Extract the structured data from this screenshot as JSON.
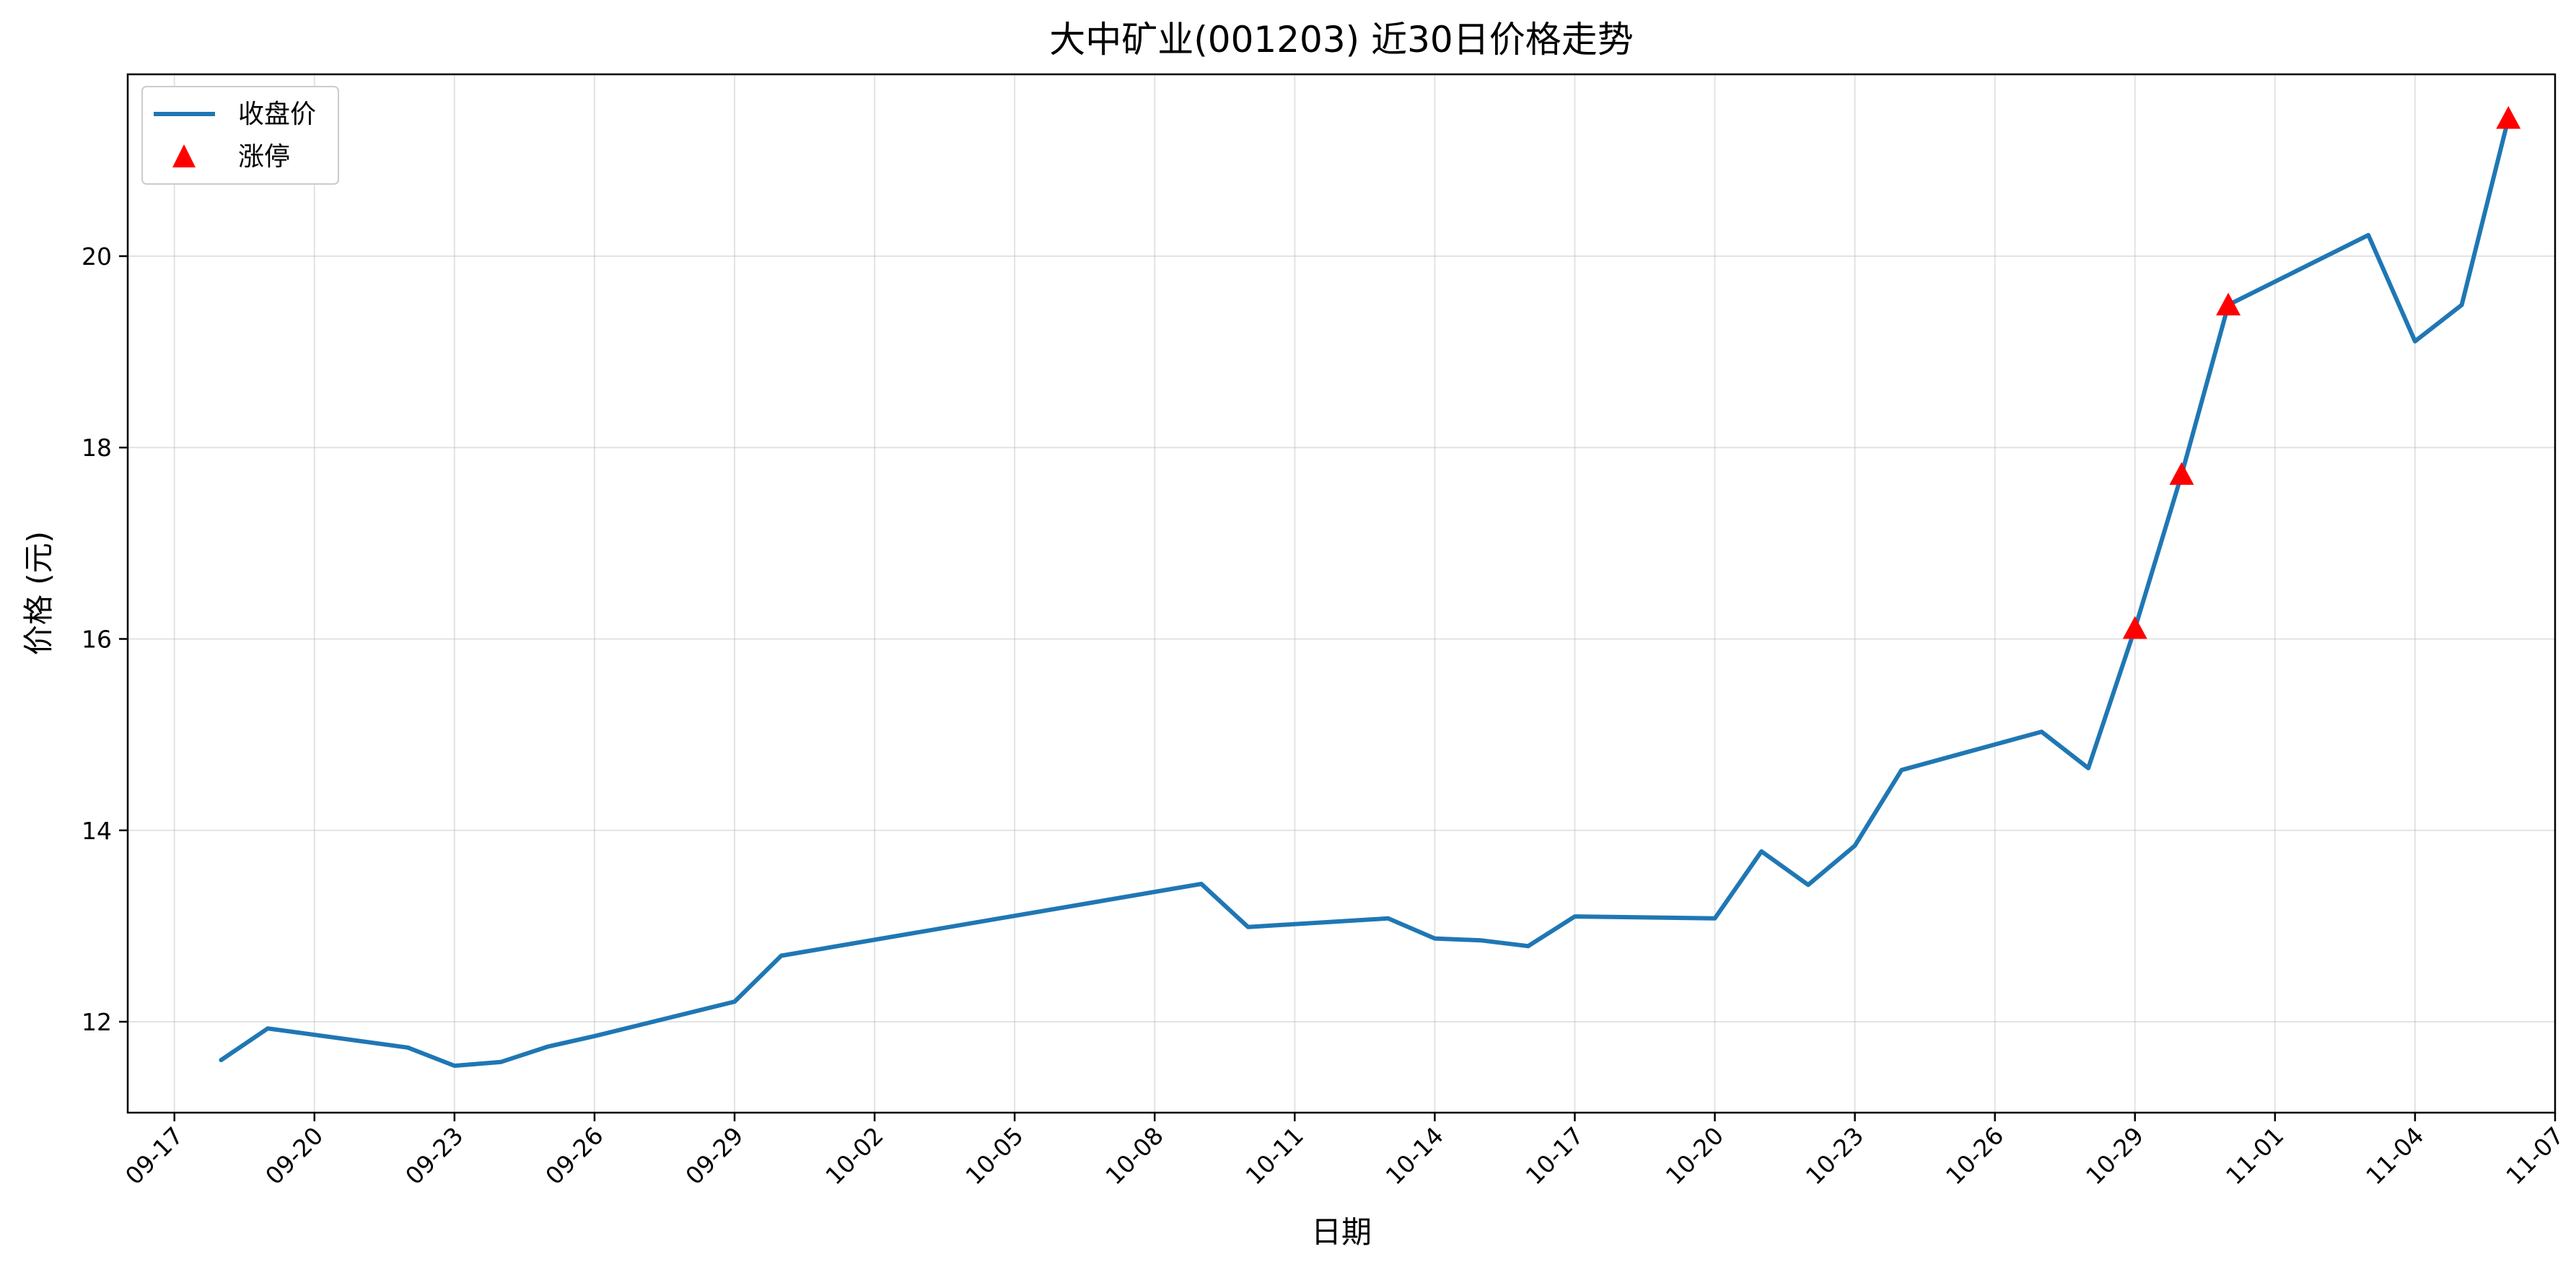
{
  "chart_data": {
    "type": "line",
    "title": "大中矿业(001203) 近30日价格走势",
    "xlabel": "日期",
    "ylabel": "价格 (元)",
    "x_tick_labels": [
      "09-17",
      "09-20",
      "09-23",
      "09-26",
      "09-29",
      "10-02",
      "10-05",
      "10-08",
      "10-11",
      "10-14",
      "10-17",
      "10-20",
      "10-23",
      "10-26",
      "10-29",
      "11-01",
      "11-04",
      "11-07"
    ],
    "y_ticks": [
      12,
      14,
      16,
      18,
      20
    ],
    "xlim": [
      "2024-09-16",
      "2024-11-07"
    ],
    "ylim": [
      11.05,
      21.9
    ],
    "grid": true,
    "legend_position": "top-left",
    "colors": {
      "line": "#1f77b4",
      "limit_up": "#ff0000"
    },
    "series": [
      {
        "name": "收盘价",
        "style": "line",
        "points": [
          {
            "x": "2024-09-18",
            "y": 11.6
          },
          {
            "x": "2024-09-19",
            "y": 11.93
          },
          {
            "x": "2024-09-22",
            "y": 11.73
          },
          {
            "x": "2024-09-23",
            "y": 11.54
          },
          {
            "x": "2024-09-24",
            "y": 11.58
          },
          {
            "x": "2024-09-25",
            "y": 11.74
          },
          {
            "x": "2024-09-26",
            "y": 11.85
          },
          {
            "x": "2024-09-29",
            "y": 12.21
          },
          {
            "x": "2024-09-30",
            "y": 12.69
          },
          {
            "x": "2024-10-09",
            "y": 13.44
          },
          {
            "x": "2024-10-10",
            "y": 12.99
          },
          {
            "x": "2024-10-13",
            "y": 13.08
          },
          {
            "x": "2024-10-14",
            "y": 12.87
          },
          {
            "x": "2024-10-15",
            "y": 12.85
          },
          {
            "x": "2024-10-16",
            "y": 12.79
          },
          {
            "x": "2024-10-17",
            "y": 13.1
          },
          {
            "x": "2024-10-20",
            "y": 13.08
          },
          {
            "x": "2024-10-21",
            "y": 13.78
          },
          {
            "x": "2024-10-22",
            "y": 13.43
          },
          {
            "x": "2024-10-23",
            "y": 13.84
          },
          {
            "x": "2024-10-24",
            "y": 14.63
          },
          {
            "x": "2024-10-27",
            "y": 15.03
          },
          {
            "x": "2024-10-28",
            "y": 14.65
          },
          {
            "x": "2024-10-29",
            "y": 16.11
          },
          {
            "x": "2024-10-30",
            "y": 17.72
          },
          {
            "x": "2024-10-31",
            "y": 19.49
          },
          {
            "x": "2024-11-03",
            "y": 20.22
          },
          {
            "x": "2024-11-04",
            "y": 19.11
          },
          {
            "x": "2024-11-05",
            "y": 19.49
          },
          {
            "x": "2024-11-06",
            "y": 21.44
          }
        ]
      },
      {
        "name": "涨停",
        "style": "marker-triangle",
        "points": [
          {
            "x": "2024-10-29",
            "y": 16.11
          },
          {
            "x": "2024-10-30",
            "y": 17.72
          },
          {
            "x": "2024-10-31",
            "y": 19.49
          },
          {
            "x": "2024-11-06",
            "y": 21.44
          }
        ]
      }
    ]
  }
}
